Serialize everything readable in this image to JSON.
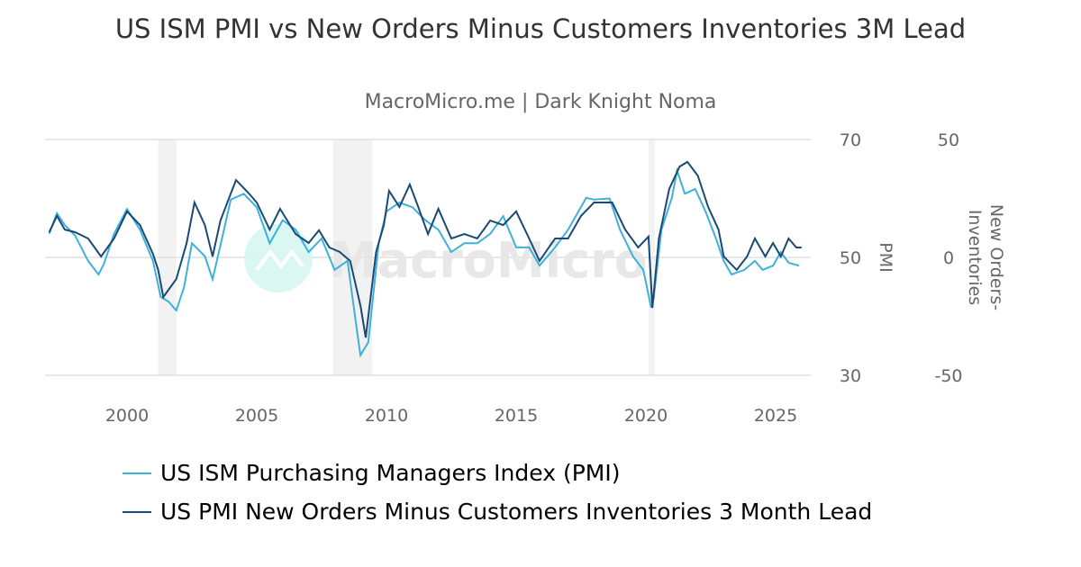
{
  "chart_data": {
    "type": "line",
    "title": "US ISM PMI vs New Orders Minus Customers Inventories 3M Lead",
    "subtitle": "MacroMicro.me | Dark Knight Noma",
    "watermark": "MacroMicro",
    "x_ticks": [
      "2000",
      "2005",
      "2010",
      "2015",
      "2020",
      "2025"
    ],
    "xlim": [
      1997.0,
      2026.3
    ],
    "y_left": {
      "label": "PMI",
      "ticks": [
        "70",
        "50",
        "30"
      ],
      "range": [
        30,
        70
      ]
    },
    "y_right": {
      "label": "New Orders-Inventories",
      "ticks": [
        "50",
        "0",
        "-50"
      ],
      "range": [
        -50,
        50
      ]
    },
    "grid": "horizontal",
    "legend_placement": "bottom",
    "recessions": [
      [
        2001.2,
        2001.9
      ],
      [
        2007.95,
        2009.45
      ],
      [
        2020.1,
        2020.35
      ]
    ],
    "series": [
      {
        "name": "US ISM Purchasing Managers Index (PMI)",
        "axis": "left",
        "color": "#3eb0dc",
        "points": [
          [
            1997.0,
            54.0
          ],
          [
            1997.3,
            57.5
          ],
          [
            1997.6,
            55.5
          ],
          [
            1998.0,
            53.7
          ],
          [
            1998.5,
            49.4
          ],
          [
            1998.9,
            47.1
          ],
          [
            1999.1,
            48.8
          ],
          [
            1999.5,
            54.0
          ],
          [
            2000.0,
            58.2
          ],
          [
            2000.5,
            54.7
          ],
          [
            2001.0,
            49.4
          ],
          [
            2001.3,
            43.3
          ],
          [
            2001.6,
            42.5
          ],
          [
            2001.9,
            41.0
          ],
          [
            2002.2,
            45.0
          ],
          [
            2002.5,
            52.4
          ],
          [
            2003.0,
            50.2
          ],
          [
            2003.3,
            46.3
          ],
          [
            2003.7,
            54.0
          ],
          [
            2004.0,
            59.8
          ],
          [
            2004.5,
            60.8
          ],
          [
            2005.0,
            58.5
          ],
          [
            2005.5,
            52.4
          ],
          [
            2006.0,
            56.3
          ],
          [
            2006.5,
            54.7
          ],
          [
            2007.0,
            50.9
          ],
          [
            2007.5,
            53.2
          ],
          [
            2008.0,
            47.9
          ],
          [
            2008.5,
            49.4
          ],
          [
            2008.9,
            36.4
          ],
          [
            2009.0,
            33.4
          ],
          [
            2009.3,
            35.6
          ],
          [
            2009.7,
            52.4
          ],
          [
            2010.0,
            57.8
          ],
          [
            2010.5,
            59.3
          ],
          [
            2011.0,
            58.5
          ],
          [
            2011.5,
            56.3
          ],
          [
            2012.0,
            54.7
          ],
          [
            2012.5,
            50.9
          ],
          [
            2013.0,
            52.4
          ],
          [
            2013.5,
            52.4
          ],
          [
            2014.0,
            54.0
          ],
          [
            2014.5,
            57.0
          ],
          [
            2015.0,
            51.7
          ],
          [
            2015.5,
            51.7
          ],
          [
            2015.9,
            48.6
          ],
          [
            2016.5,
            51.7
          ],
          [
            2017.0,
            54.7
          ],
          [
            2017.7,
            60.1
          ],
          [
            2018.0,
            59.8
          ],
          [
            2018.6,
            60.0
          ],
          [
            2019.0,
            54.7
          ],
          [
            2019.5,
            50.2
          ],
          [
            2019.9,
            47.9
          ],
          [
            2020.2,
            41.5
          ],
          [
            2020.3,
            43.1
          ],
          [
            2020.6,
            54.7
          ],
          [
            2021.0,
            60.1
          ],
          [
            2021.2,
            64.7
          ],
          [
            2021.5,
            60.8
          ],
          [
            2021.9,
            61.6
          ],
          [
            2022.3,
            57.8
          ],
          [
            2022.7,
            53.2
          ],
          [
            2023.0,
            49.4
          ],
          [
            2023.3,
            47.1
          ],
          [
            2023.8,
            47.9
          ],
          [
            2024.2,
            49.4
          ],
          [
            2024.5,
            47.9
          ],
          [
            2024.9,
            48.6
          ],
          [
            2025.2,
            50.9
          ],
          [
            2025.5,
            49.1
          ],
          [
            2025.9,
            48.6
          ]
        ]
      },
      {
        "name": "US PMI New Orders Minus Customers Inventories 3 Month Lead",
        "axis": "right",
        "color": "#1a4a73",
        "points": [
          [
            1997.0,
            10.7
          ],
          [
            1997.3,
            17.6
          ],
          [
            1997.6,
            11.8
          ],
          [
            1998.0,
            10.7
          ],
          [
            1998.5,
            8.0
          ],
          [
            1999.0,
            0.4
          ],
          [
            1999.5,
            8.0
          ],
          [
            2000.0,
            19.5
          ],
          [
            2000.5,
            13.7
          ],
          [
            2001.0,
            1.5
          ],
          [
            2001.2,
            -5.3
          ],
          [
            2001.4,
            -16.8
          ],
          [
            2001.9,
            -9.2
          ],
          [
            2002.3,
            6.1
          ],
          [
            2002.6,
            23.3
          ],
          [
            2003.0,
            13.7
          ],
          [
            2003.3,
            0.4
          ],
          [
            2003.6,
            15.6
          ],
          [
            2004.0,
            27.1
          ],
          [
            2004.2,
            32.8
          ],
          [
            2004.7,
            27.1
          ],
          [
            2005.0,
            23.3
          ],
          [
            2005.5,
            11.8
          ],
          [
            2005.9,
            20.6
          ],
          [
            2006.5,
            9.9
          ],
          [
            2007.0,
            6.1
          ],
          [
            2007.4,
            11.5
          ],
          [
            2007.8,
            4.2
          ],
          [
            2008.2,
            2.3
          ],
          [
            2008.6,
            -1.5
          ],
          [
            2009.0,
            -20.6
          ],
          [
            2009.2,
            -34.0
          ],
          [
            2009.6,
            2.3
          ],
          [
            2009.9,
            13.7
          ],
          [
            2010.1,
            28.2
          ],
          [
            2010.5,
            21.4
          ],
          [
            2010.9,
            30.9
          ],
          [
            2011.2,
            22.1
          ],
          [
            2011.6,
            9.9
          ],
          [
            2012.0,
            20.6
          ],
          [
            2012.5,
            8.0
          ],
          [
            2013.0,
            9.9
          ],
          [
            2013.5,
            8.0
          ],
          [
            2014.0,
            15.6
          ],
          [
            2014.5,
            13.7
          ],
          [
            2015.0,
            19.5
          ],
          [
            2015.5,
            8.0
          ],
          [
            2015.9,
            -1.5
          ],
          [
            2016.5,
            8.0
          ],
          [
            2017.0,
            8.0
          ],
          [
            2017.5,
            17.6
          ],
          [
            2018.0,
            23.3
          ],
          [
            2018.7,
            23.3
          ],
          [
            2019.2,
            11.8
          ],
          [
            2019.7,
            4.2
          ],
          [
            2020.1,
            8.8
          ],
          [
            2020.25,
            -21.4
          ],
          [
            2020.5,
            8.0
          ],
          [
            2020.9,
            29.0
          ],
          [
            2021.3,
            38.5
          ],
          [
            2021.6,
            40.5
          ],
          [
            2022.0,
            34.7
          ],
          [
            2022.4,
            21.4
          ],
          [
            2022.8,
            11.8
          ],
          [
            2023.0,
            0.4
          ],
          [
            2023.5,
            -5.3
          ],
          [
            2023.9,
            0.4
          ],
          [
            2024.2,
            8.0
          ],
          [
            2024.6,
            0.4
          ],
          [
            2024.9,
            6.1
          ],
          [
            2025.2,
            0.4
          ],
          [
            2025.5,
            8.0
          ],
          [
            2025.8,
            4.2
          ],
          [
            2026.0,
            4.2
          ]
        ]
      }
    ]
  }
}
